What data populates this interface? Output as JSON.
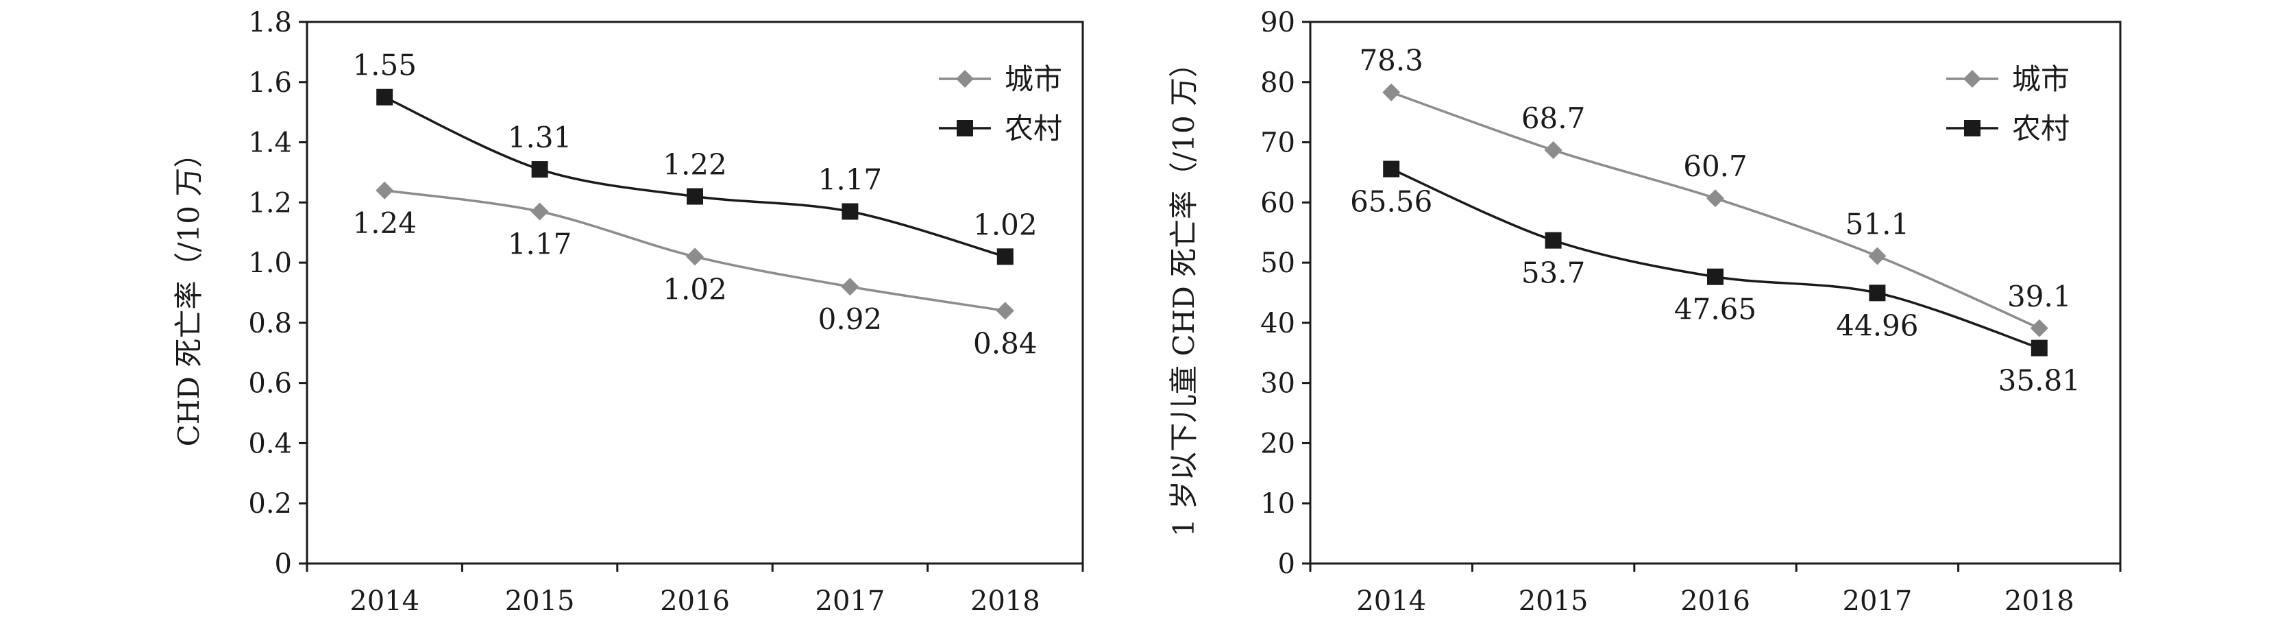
{
  "chart_data": [
    {
      "type": "line",
      "categories": [
        "2014",
        "2015",
        "2016",
        "2017",
        "2018"
      ],
      "ylabel": "CHD 死亡率（/10 万）",
      "ylim": [
        0,
        1.8
      ],
      "yticks": [
        "0",
        "0.2",
        "0.4",
        "0.6",
        "0.8",
        "1.0",
        "1.2",
        "1.4",
        "1.6",
        "1.8"
      ],
      "grid": false,
      "legend_position": "top-right",
      "series": [
        {
          "name": "城市",
          "values": [
            1.24,
            1.17,
            1.02,
            0.92,
            0.84
          ],
          "labels": [
            "1.24",
            "1.17",
            "1.02",
            "0.92",
            "0.84"
          ],
          "label_side": "below",
          "marker": "diamond",
          "color": "#8c8c8c"
        },
        {
          "name": "农村",
          "values": [
            1.55,
            1.31,
            1.22,
            1.17,
            1.02
          ],
          "labels": [
            "1.55",
            "1.31",
            "1.22",
            "1.17",
            "1.02"
          ],
          "label_side": "above",
          "marker": "square",
          "color": "#1a1a1a"
        }
      ]
    },
    {
      "type": "line",
      "categories": [
        "2014",
        "2015",
        "2016",
        "2017",
        "2018"
      ],
      "ylabel": "1 岁以下儿童 CHD 死亡率（/10 万）",
      "ylim": [
        0,
        90
      ],
      "yticks": [
        "0",
        "10",
        "20",
        "30",
        "40",
        "50",
        "60",
        "70",
        "80",
        "90"
      ],
      "grid": false,
      "legend_position": "top-right",
      "series": [
        {
          "name": "城市",
          "values": [
            78.3,
            68.7,
            60.7,
            51.1,
            39.1
          ],
          "labels": [
            "78.3",
            "68.7",
            "60.7",
            "51.1",
            "39.1"
          ],
          "label_side": "above",
          "marker": "diamond",
          "color": "#8c8c8c"
        },
        {
          "name": "农村",
          "values": [
            65.56,
            53.7,
            47.65,
            44.96,
            35.81
          ],
          "labels": [
            "65.56",
            "53.7",
            "47.65",
            "44.96",
            "35.81"
          ],
          "label_side": "below",
          "marker": "square",
          "color": "#1a1a1a"
        }
      ]
    }
  ]
}
